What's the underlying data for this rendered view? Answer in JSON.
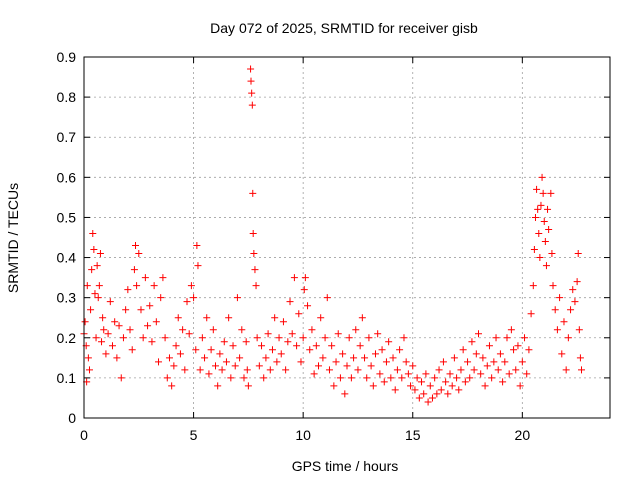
{
  "chart_data": {
    "type": "scatter",
    "title": "Day 072 of 2025, SRMTID for receiver gisb",
    "xlabel": "GPS time / hours",
    "ylabel": "SRMTID / TECUs",
    "xlim": [
      0,
      24
    ],
    "ylim": [
      0,
      0.9
    ],
    "x_ticks": [
      0,
      5,
      10,
      15,
      20
    ],
    "x_tick_labels": [
      "0",
      "5",
      "10",
      "15",
      "20"
    ],
    "y_ticks": [
      0,
      0.1,
      0.2,
      0.3,
      0.4,
      0.5,
      0.6,
      0.7,
      0.8,
      0.9
    ],
    "y_tick_labels": [
      "0",
      "0.1",
      "0.2",
      "0.3",
      "0.4",
      "0.5",
      "0.6",
      "0.7",
      "0.8",
      "0.9"
    ],
    "grid": true,
    "marker": "plus",
    "color": "#ff0000",
    "series": [
      {
        "name": "SRMTID",
        "points": [
          [
            0.0,
            0.21
          ],
          [
            0.05,
            0.24
          ],
          [
            0.1,
            0.18
          ],
          [
            0.12,
            0.09
          ],
          [
            0.15,
            0.33
          ],
          [
            0.2,
            0.15
          ],
          [
            0.25,
            0.12
          ],
          [
            0.3,
            0.27
          ],
          [
            0.35,
            0.37
          ],
          [
            0.4,
            0.46
          ],
          [
            0.45,
            0.42
          ],
          [
            0.5,
            0.31
          ],
          [
            0.55,
            0.2
          ],
          [
            0.6,
            0.38
          ],
          [
            0.65,
            0.3
          ],
          [
            0.7,
            0.33
          ],
          [
            0.75,
            0.41
          ],
          [
            0.8,
            0.19
          ],
          [
            0.85,
            0.25
          ],
          [
            0.9,
            0.22
          ],
          [
            1.0,
            0.16
          ],
          [
            1.1,
            0.21
          ],
          [
            1.2,
            0.29
          ],
          [
            1.3,
            0.18
          ],
          [
            1.4,
            0.24
          ],
          [
            1.5,
            0.15
          ],
          [
            1.6,
            0.23
          ],
          [
            1.7,
            0.1
          ],
          [
            1.8,
            0.2
          ],
          [
            1.9,
            0.27
          ],
          [
            2.0,
            0.32
          ],
          [
            2.1,
            0.22
          ],
          [
            2.2,
            0.17
          ],
          [
            2.3,
            0.37
          ],
          [
            2.35,
            0.43
          ],
          [
            2.4,
            0.33
          ],
          [
            2.5,
            0.41
          ],
          [
            2.6,
            0.27
          ],
          [
            2.7,
            0.2
          ],
          [
            2.8,
            0.35
          ],
          [
            2.9,
            0.23
          ],
          [
            3.0,
            0.28
          ],
          [
            3.1,
            0.19
          ],
          [
            3.2,
            0.33
          ],
          [
            3.3,
            0.24
          ],
          [
            3.4,
            0.14
          ],
          [
            3.5,
            0.3
          ],
          [
            3.6,
            0.35
          ],
          [
            3.7,
            0.2
          ],
          [
            3.8,
            0.1
          ],
          [
            3.9,
            0.15
          ],
          [
            4.0,
            0.08
          ],
          [
            4.1,
            0.13
          ],
          [
            4.2,
            0.18
          ],
          [
            4.3,
            0.25
          ],
          [
            4.4,
            0.16
          ],
          [
            4.5,
            0.22
          ],
          [
            4.6,
            0.12
          ],
          [
            4.7,
            0.29
          ],
          [
            4.8,
            0.21
          ],
          [
            4.9,
            0.33
          ],
          [
            5.0,
            0.3
          ],
          [
            5.1,
            0.17
          ],
          [
            5.15,
            0.43
          ],
          [
            5.2,
            0.38
          ],
          [
            5.3,
            0.12
          ],
          [
            5.4,
            0.2
          ],
          [
            5.5,
            0.15
          ],
          [
            5.6,
            0.25
          ],
          [
            5.7,
            0.11
          ],
          [
            5.8,
            0.17
          ],
          [
            5.9,
            0.22
          ],
          [
            6.0,
            0.13
          ],
          [
            6.1,
            0.08
          ],
          [
            6.2,
            0.16
          ],
          [
            6.3,
            0.12
          ],
          [
            6.4,
            0.19
          ],
          [
            6.5,
            0.14
          ],
          [
            6.6,
            0.25
          ],
          [
            6.7,
            0.1
          ],
          [
            6.8,
            0.18
          ],
          [
            6.9,
            0.13
          ],
          [
            7.0,
            0.3
          ],
          [
            7.1,
            0.15
          ],
          [
            7.2,
            0.22
          ],
          [
            7.3,
            0.1
          ],
          [
            7.4,
            0.19
          ],
          [
            7.45,
            0.12
          ],
          [
            7.5,
            0.08
          ],
          [
            7.6,
            0.87
          ],
          [
            7.62,
            0.84
          ],
          [
            7.65,
            0.81
          ],
          [
            7.68,
            0.78
          ],
          [
            7.7,
            0.56
          ],
          [
            7.72,
            0.46
          ],
          [
            7.75,
            0.41
          ],
          [
            7.8,
            0.37
          ],
          [
            7.85,
            0.33
          ],
          [
            7.9,
            0.2
          ],
          [
            8.0,
            0.13
          ],
          [
            8.1,
            0.18
          ],
          [
            8.2,
            0.1
          ],
          [
            8.3,
            0.15
          ],
          [
            8.4,
            0.21
          ],
          [
            8.5,
            0.12
          ],
          [
            8.6,
            0.17
          ],
          [
            8.7,
            0.25
          ],
          [
            8.8,
            0.14
          ],
          [
            8.9,
            0.2
          ],
          [
            9.0,
            0.16
          ],
          [
            9.1,
            0.24
          ],
          [
            9.2,
            0.12
          ],
          [
            9.3,
            0.19
          ],
          [
            9.4,
            0.29
          ],
          [
            9.5,
            0.21
          ],
          [
            9.6,
            0.35
          ],
          [
            9.7,
            0.18
          ],
          [
            9.8,
            0.26
          ],
          [
            9.9,
            0.14
          ],
          [
            10.0,
            0.2
          ],
          [
            10.05,
            0.32
          ],
          [
            10.1,
            0.35
          ],
          [
            10.2,
            0.28
          ],
          [
            10.3,
            0.17
          ],
          [
            10.4,
            0.22
          ],
          [
            10.5,
            0.11
          ],
          [
            10.6,
            0.18
          ],
          [
            10.7,
            0.13
          ],
          [
            10.8,
            0.25
          ],
          [
            10.9,
            0.15
          ],
          [
            11.0,
            0.2
          ],
          [
            11.1,
            0.3
          ],
          [
            11.2,
            0.12
          ],
          [
            11.3,
            0.18
          ],
          [
            11.4,
            0.08
          ],
          [
            11.5,
            0.14
          ],
          [
            11.6,
            0.21
          ],
          [
            11.7,
            0.1
          ],
          [
            11.8,
            0.16
          ],
          [
            11.9,
            0.06
          ],
          [
            12.0,
            0.13
          ],
          [
            12.1,
            0.2
          ],
          [
            12.2,
            0.1
          ],
          [
            12.3,
            0.15
          ],
          [
            12.4,
            0.22
          ],
          [
            12.5,
            0.12
          ],
          [
            12.6,
            0.18
          ],
          [
            12.7,
            0.25
          ],
          [
            12.8,
            0.15
          ],
          [
            12.9,
            0.1
          ],
          [
            13.0,
            0.2
          ],
          [
            13.1,
            0.13
          ],
          [
            13.2,
            0.08
          ],
          [
            13.3,
            0.16
          ],
          [
            13.4,
            0.21
          ],
          [
            13.5,
            0.11
          ],
          [
            13.6,
            0.17
          ],
          [
            13.7,
            0.09
          ],
          [
            13.8,
            0.14
          ],
          [
            13.9,
            0.19
          ],
          [
            14.0,
            0.1
          ],
          [
            14.1,
            0.15
          ],
          [
            14.2,
            0.07
          ],
          [
            14.3,
            0.12
          ],
          [
            14.4,
            0.17
          ],
          [
            14.5,
            0.1
          ],
          [
            14.6,
            0.2
          ],
          [
            14.7,
            0.14
          ],
          [
            14.8,
            0.11
          ],
          [
            14.9,
            0.08
          ],
          [
            15.0,
            0.13
          ],
          [
            15.1,
            0.07
          ],
          [
            15.2,
            0.1
          ],
          [
            15.3,
            0.05
          ],
          [
            15.4,
            0.09
          ],
          [
            15.5,
            0.06
          ],
          [
            15.6,
            0.11
          ],
          [
            15.7,
            0.04
          ],
          [
            15.8,
            0.08
          ],
          [
            15.9,
            0.05
          ],
          [
            16.0,
            0.1
          ],
          [
            16.1,
            0.06
          ],
          [
            16.2,
            0.12
          ],
          [
            16.3,
            0.07
          ],
          [
            16.4,
            0.14
          ],
          [
            16.5,
            0.09
          ],
          [
            16.6,
            0.06
          ],
          [
            16.7,
            0.11
          ],
          [
            16.8,
            0.08
          ],
          [
            16.9,
            0.15
          ],
          [
            17.0,
            0.1
          ],
          [
            17.1,
            0.07
          ],
          [
            17.2,
            0.12
          ],
          [
            17.3,
            0.17
          ],
          [
            17.4,
            0.09
          ],
          [
            17.5,
            0.14
          ],
          [
            17.6,
            0.1
          ],
          [
            17.7,
            0.19
          ],
          [
            17.8,
            0.12
          ],
          [
            17.9,
            0.16
          ],
          [
            18.0,
            0.21
          ],
          [
            18.1,
            0.11
          ],
          [
            18.2,
            0.15
          ],
          [
            18.3,
            0.08
          ],
          [
            18.4,
            0.13
          ],
          [
            18.5,
            0.18
          ],
          [
            18.6,
            0.1
          ],
          [
            18.7,
            0.14
          ],
          [
            18.8,
            0.2
          ],
          [
            18.9,
            0.12
          ],
          [
            19.0,
            0.16
          ],
          [
            19.1,
            0.09
          ],
          [
            19.2,
            0.14
          ],
          [
            19.3,
            0.2
          ],
          [
            19.4,
            0.11
          ],
          [
            19.5,
            0.22
          ],
          [
            19.6,
            0.17
          ],
          [
            19.7,
            0.12
          ],
          [
            19.8,
            0.18
          ],
          [
            19.9,
            0.08
          ],
          [
            20.0,
            0.14
          ],
          [
            20.1,
            0.2
          ],
          [
            20.2,
            0.11
          ],
          [
            20.3,
            0.17
          ],
          [
            20.4,
            0.26
          ],
          [
            20.5,
            0.33
          ],
          [
            20.55,
            0.42
          ],
          [
            20.6,
            0.5
          ],
          [
            20.65,
            0.57
          ],
          [
            20.7,
            0.52
          ],
          [
            20.75,
            0.46
          ],
          [
            20.8,
            0.4
          ],
          [
            20.85,
            0.53
          ],
          [
            20.9,
            0.6
          ],
          [
            20.95,
            0.56
          ],
          [
            21.0,
            0.49
          ],
          [
            21.05,
            0.44
          ],
          [
            21.1,
            0.38
          ],
          [
            21.15,
            0.52
          ],
          [
            21.2,
            0.47
          ],
          [
            21.3,
            0.56
          ],
          [
            21.35,
            0.41
          ],
          [
            21.4,
            0.33
          ],
          [
            21.5,
            0.27
          ],
          [
            21.6,
            0.22
          ],
          [
            21.7,
            0.3
          ],
          [
            21.8,
            0.16
          ],
          [
            21.9,
            0.24
          ],
          [
            22.0,
            0.12
          ],
          [
            22.1,
            0.2
          ],
          [
            22.2,
            0.27
          ],
          [
            22.3,
            0.32
          ],
          [
            22.4,
            0.29
          ],
          [
            22.5,
            0.34
          ],
          [
            22.55,
            0.41
          ],
          [
            22.6,
            0.22
          ],
          [
            22.65,
            0.15
          ],
          [
            22.7,
            0.12
          ]
        ]
      }
    ]
  }
}
